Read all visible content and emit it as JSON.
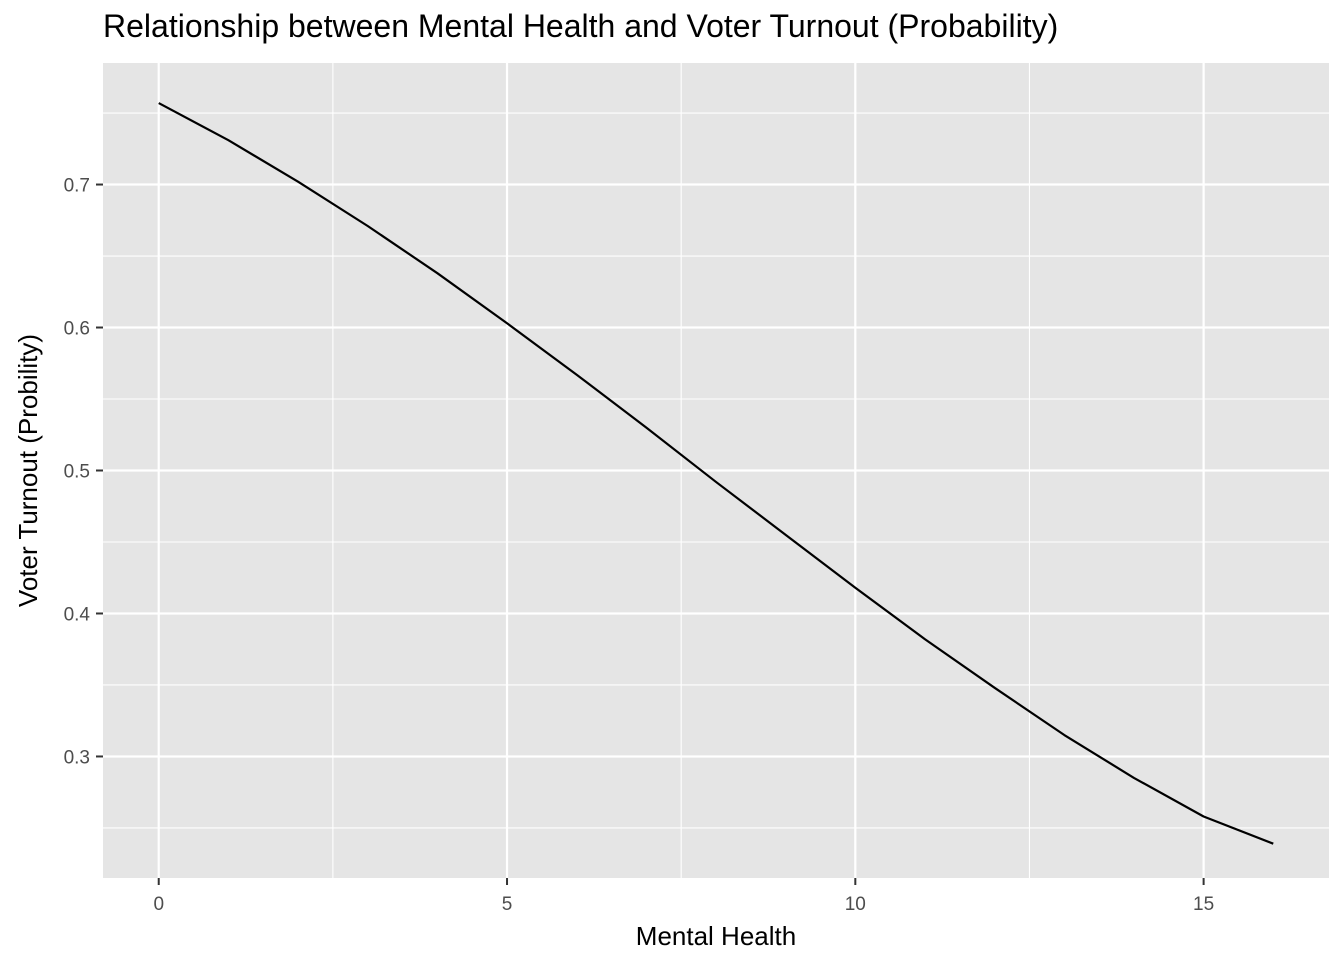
{
  "chart_data": {
    "type": "line",
    "title": "Relationship between Mental Health and Voter Turnout (Probability)",
    "xlabel": "Mental Health",
    "ylabel": "Voter Turnout (Probility)",
    "xlim": [
      -0.8,
      16.8
    ],
    "ylim": [
      0.215,
      0.785
    ],
    "x_ticks": [
      0,
      5,
      10,
      15
    ],
    "x_tick_labels": [
      "0",
      "5",
      "10",
      "15"
    ],
    "y_ticks": [
      0.3,
      0.4,
      0.5,
      0.6,
      0.7
    ],
    "y_tick_labels": [
      "0.3",
      "0.4",
      "0.5",
      "0.6",
      "0.7"
    ],
    "grid": true,
    "panel_background": "#e5e5e5",
    "grid_color": "#ffffff",
    "line_color": "#000000",
    "series": [
      {
        "x": [
          0,
          1,
          2,
          3,
          4,
          5,
          6,
          7,
          8,
          9,
          10,
          11,
          12,
          13,
          14,
          15,
          16
        ],
        "values": [
          0.757,
          0.731,
          0.702,
          0.671,
          0.638,
          0.603,
          0.567,
          0.53,
          0.492,
          0.455,
          0.418,
          0.382,
          0.348,
          0.315,
          0.285,
          0.258,
          0.239
        ]
      }
    ]
  }
}
